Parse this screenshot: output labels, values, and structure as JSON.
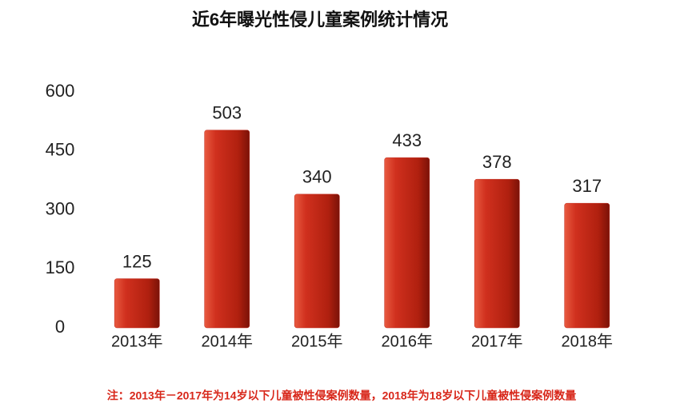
{
  "chart_data": {
    "type": "bar",
    "title": "近6年曝光性侵儿童案例统计情况",
    "categories": [
      "2013年",
      "2014年",
      "2015年",
      "2016年",
      "2017年",
      "2018年"
    ],
    "values": [
      125,
      503,
      340,
      433,
      378,
      317
    ],
    "color": "#c0281c",
    "ylim": [
      0,
      600
    ],
    "yticks": [
      0,
      150,
      300,
      450,
      600
    ],
    "grid": false,
    "note": "注：2013年－2017年为14岁以下儿童被性侵案例数量，2018年为18岁以下儿童被性侵案例数量"
  }
}
